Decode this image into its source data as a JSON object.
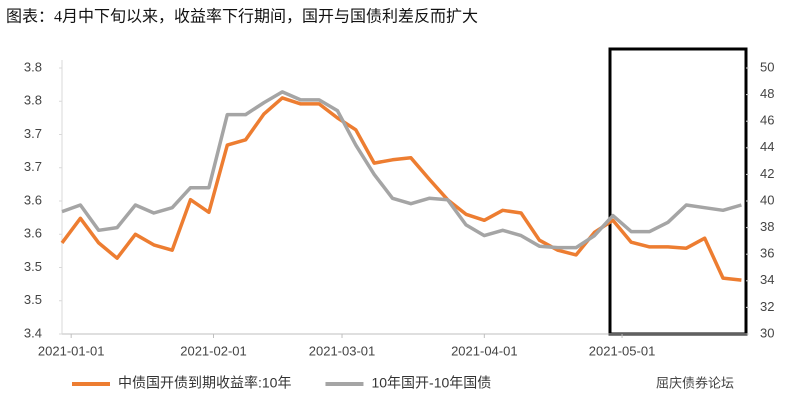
{
  "chart_data": {
    "type": "line",
    "title": "图表：4月中下旬以来，收益率下行期间，国开与国债利差反而扩大",
    "watermark": "屈庆债券论坛",
    "x": [
      "2020-12-30",
      "2021-01-03",
      "2021-01-07",
      "2021-01-11",
      "2021-01-15",
      "2021-01-19",
      "2021-01-23",
      "2021-01-27",
      "2021-01-31",
      "2021-02-04",
      "2021-02-08",
      "2021-02-12",
      "2021-02-16",
      "2021-02-20",
      "2021-02-24",
      "2021-02-28",
      "2021-03-04",
      "2021-03-08",
      "2021-03-12",
      "2021-03-16",
      "2021-03-20",
      "2021-03-24",
      "2021-03-28",
      "2021-04-01",
      "2021-04-05",
      "2021-04-09",
      "2021-04-13",
      "2021-04-17",
      "2021-04-21",
      "2021-04-25",
      "2021-04-29",
      "2021-05-03",
      "2021-05-07",
      "2021-05-11",
      "2021-05-15",
      "2021-05-19",
      "2021-05-23",
      "2021-05-27"
    ],
    "xlim": [
      "2020-12-30",
      "2021-05-28"
    ],
    "xticks": [
      "2021-01-01",
      "2021-02-01",
      "2021-03-01",
      "2021-04-01",
      "2021-05-01"
    ],
    "series": [
      {
        "name": "中债国开债到期收益率:10年",
        "color": "#ed7d31",
        "axis": "y",
        "values": [
          3.537,
          3.574,
          3.537,
          3.514,
          3.55,
          3.534,
          3.526,
          3.602,
          3.583,
          3.684,
          3.692,
          3.731,
          3.755,
          3.746,
          3.746,
          3.725,
          3.707,
          3.657,
          3.662,
          3.665,
          3.633,
          3.602,
          3.58,
          3.571,
          3.586,
          3.582,
          3.541,
          3.526,
          3.519,
          3.553,
          3.571,
          3.538,
          3.531,
          3.531,
          3.529,
          3.544,
          3.484,
          3.481
        ]
      },
      {
        "name": "10年国开-10年国债",
        "color": "#a5a5a5",
        "axis": "y2",
        "values": [
          39.2,
          39.7,
          37.8,
          38.0,
          39.7,
          39.1,
          39.5,
          41.0,
          41.0,
          46.5,
          46.5,
          47.4,
          48.2,
          47.6,
          47.6,
          46.8,
          44.2,
          42.0,
          40.2,
          39.8,
          40.2,
          40.1,
          38.2,
          37.4,
          37.8,
          37.4,
          36.6,
          36.5,
          36.5,
          37.4,
          38.9,
          37.7,
          37.7,
          38.4,
          39.7,
          39.5,
          39.3,
          39.7
        ]
      }
    ],
    "ylim": [
      3.4,
      3.8
    ],
    "yticks": [
      3.4,
      {
        "value": 3.45,
        "label": "3.5"
      },
      3.5,
      {
        "value": 3.55,
        "label": "3.6"
      },
      3.6,
      {
        "value": 3.65,
        "label": "3.7"
      },
      3.7,
      {
        "value": 3.75,
        "label": "3.8"
      },
      3.8
    ],
    "y2lim": [
      30,
      50
    ],
    "y2ticks": [
      30,
      32,
      34,
      36,
      38,
      40,
      42,
      44,
      46,
      48,
      50
    ],
    "grid": false,
    "legend": "bottom"
  }
}
